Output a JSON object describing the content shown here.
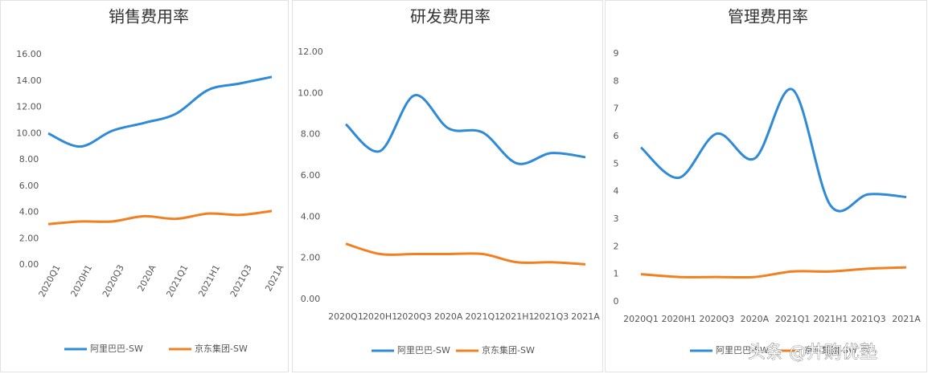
{
  "chart_data": [
    {
      "type": "line",
      "title": "销售费用率",
      "categories": [
        "2020Q1",
        "2020H1",
        "2020Q3",
        "2020A",
        "2021Q1",
        "2021H1",
        "2021Q3",
        "2021A"
      ],
      "series": [
        {
          "name": "阿里巴巴-SW",
          "color": "#2f8ad8",
          "values": [
            10.0,
            9.0,
            10.2,
            10.8,
            11.5,
            13.3,
            13.8,
            14.3
          ]
        },
        {
          "name": "京东集团-SW",
          "color": "#f28021",
          "values": [
            3.1,
            3.3,
            3.3,
            3.7,
            3.5,
            3.9,
            3.8,
            4.1
          ]
        }
      ],
      "ylim": [
        0,
        16
      ],
      "yticks": [
        {
          "value": 0,
          "label": "0.00"
        },
        {
          "value": 2,
          "label": "2.00"
        },
        {
          "value": 4,
          "label": "4.00"
        },
        {
          "value": 6,
          "label": "6.00"
        },
        {
          "value": 8,
          "label": "8.00"
        },
        {
          "value": 10,
          "label": "10.00"
        },
        {
          "value": 12,
          "label": "12.00"
        },
        {
          "value": 14,
          "label": "14.00"
        },
        {
          "value": 16,
          "label": "16.00"
        }
      ],
      "rotate_x_labels": true
    },
    {
      "type": "line",
      "title": "研发费用率",
      "categories": [
        "2020Q1",
        "2020H1",
        "2020Q3",
        "2020A",
        "2021Q1",
        "2021H1",
        "2021Q3",
        "2021A"
      ],
      "series": [
        {
          "name": "阿里巴巴-SW",
          "color": "#2f8ad8",
          "values": [
            8.5,
            7.2,
            9.9,
            8.3,
            8.1,
            6.6,
            7.1,
            6.9
          ]
        },
        {
          "name": "京东集团-SW",
          "color": "#f28021",
          "values": [
            2.7,
            2.2,
            2.2,
            2.2,
            2.2,
            1.8,
            1.8,
            1.7
          ]
        }
      ],
      "ylim": [
        0,
        12
      ],
      "yticks": [
        {
          "value": 0,
          "label": "0.00"
        },
        {
          "value": 2,
          "label": "2.00"
        },
        {
          "value": 4,
          "label": "4.00"
        },
        {
          "value": 6,
          "label": "6.00"
        },
        {
          "value": 8,
          "label": "8.00"
        },
        {
          "value": 10,
          "label": "10.00"
        },
        {
          "value": 12,
          "label": "12.00"
        }
      ],
      "rotate_x_labels": false
    },
    {
      "type": "line",
      "title": "管理费用率",
      "categories": [
        "2020Q1",
        "2020H1",
        "2020Q3",
        "2020A",
        "2021Q1",
        "2021H1",
        "2021Q3",
        "2021A"
      ],
      "series": [
        {
          "name": "阿里巴巴-SW",
          "color": "#2f8ad8",
          "values": [
            5.6,
            4.5,
            6.1,
            5.2,
            7.7,
            3.5,
            3.9,
            3.8
          ]
        },
        {
          "name": "京东集团-SW",
          "color": "#f28021",
          "values": [
            1.0,
            0.9,
            0.9,
            0.9,
            1.1,
            1.1,
            1.2,
            1.25
          ]
        }
      ],
      "ylim": [
        0,
        9
      ],
      "yticks": [
        0,
        1,
        2,
        3,
        4,
        5,
        6,
        7,
        8,
        9
      ],
      "rotate_x_labels": false
    }
  ],
  "watermark": "头条 @井购优塾"
}
